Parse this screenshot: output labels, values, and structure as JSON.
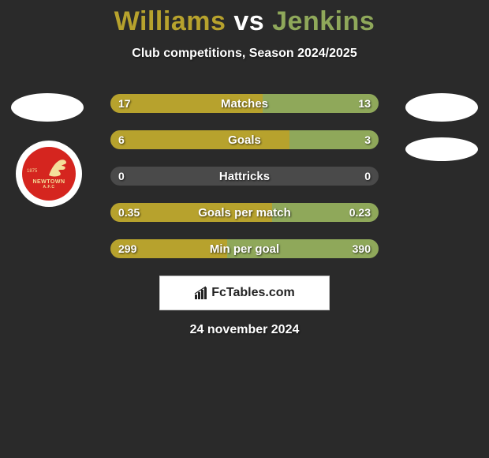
{
  "title": {
    "player1": "Williams",
    "vs": "vs",
    "player2": "Jenkins",
    "player1_color": "#b7a22d",
    "vs_color": "#ffffff",
    "player2_color": "#8fa85a"
  },
  "subtitle": "Club competitions, Season 2024/2025",
  "subtitle_color": "#ffffff",
  "date": "24 november 2024",
  "date_color": "#ffffff",
  "background_color": "#2a2a2a",
  "bar_track_color": "#4a4a4a",
  "bar_left_color": "#b7a22d",
  "bar_right_color": "#8fa85a",
  "bars": [
    {
      "label": "Matches",
      "left_val": "17",
      "right_val": "13",
      "left_pct": 56.7,
      "right_pct": 43.3
    },
    {
      "label": "Goals",
      "left_val": "6",
      "right_val": "3",
      "left_pct": 66.7,
      "right_pct": 33.3
    },
    {
      "label": "Hattricks",
      "left_val": "0",
      "right_val": "0",
      "left_pct": 0,
      "right_pct": 0
    },
    {
      "label": "Goals per match",
      "left_val": "0.35",
      "right_val": "0.23",
      "left_pct": 60.3,
      "right_pct": 39.7
    },
    {
      "label": "Min per goal",
      "left_val": "299",
      "right_val": "390",
      "left_pct": 43.4,
      "right_pct": 56.6
    }
  ],
  "crest": {
    "name": "NEWTOWN",
    "afc": "A.F.C",
    "year": "1875",
    "bg_color": "#d5251f",
    "text_color": "#f4df9a"
  },
  "watermark": {
    "text": "FcTables.com",
    "icon_name": "bar-chart-icon"
  }
}
